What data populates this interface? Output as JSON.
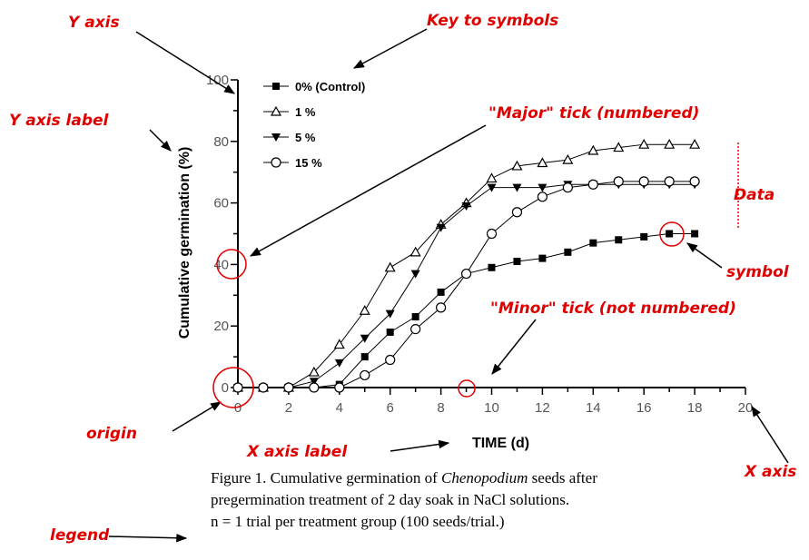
{
  "chart_data": {
    "type": "line",
    "x": [
      0,
      1,
      2,
      3,
      4,
      5,
      6,
      7,
      8,
      9,
      10,
      11,
      12,
      13,
      14,
      15,
      16,
      17,
      18
    ],
    "series": [
      {
        "name": "0% (Control)",
        "color": "#000000",
        "marker": "square",
        "values": [
          0,
          0,
          0,
          0,
          1,
          10,
          18,
          23,
          31,
          37,
          39,
          41,
          42,
          44,
          47,
          48,
          49,
          50,
          50
        ]
      },
      {
        "name": "1 %",
        "color": "#000000",
        "marker": "triangle-up-open",
        "values": [
          0,
          0,
          0,
          5,
          14,
          25,
          39,
          44,
          53,
          60,
          68,
          72,
          73,
          74,
          77,
          78,
          79,
          79,
          79
        ]
      },
      {
        "name": "5 %",
        "color": "#000000",
        "marker": "triangle-down",
        "values": [
          0,
          0,
          0,
          2,
          8,
          16,
          24,
          37,
          52,
          59,
          65,
          65,
          65,
          66,
          66,
          66,
          66,
          66,
          66
        ]
      },
      {
        "name": "15 %",
        "color": "#000000",
        "marker": "circle-open",
        "values": [
          0,
          0,
          0,
          0,
          0,
          4,
          9,
          19,
          26,
          37,
          50,
          57,
          62,
          65,
          66,
          67,
          67,
          67,
          67
        ]
      }
    ],
    "xlabel": "TIME (d)",
    "ylabel": "Cumulative germination (%)",
    "xlim": [
      0,
      20
    ],
    "ylim": [
      0,
      100
    ],
    "xticks": [
      0,
      2,
      4,
      6,
      8,
      10,
      12,
      14,
      16,
      18,
      20
    ],
    "yticks": [
      0,
      20,
      40,
      60,
      80,
      100
    ],
    "xticks_minor": [
      1,
      3,
      5,
      7,
      9,
      11,
      13,
      15,
      17,
      19
    ],
    "yticks_minor": [
      10,
      30,
      50,
      70,
      90
    ],
    "grid": false,
    "legend": "upper left"
  },
  "annotations": {
    "y_axis": "Y axis",
    "key": "Key to symbols",
    "y_axis_label": "Y axis label",
    "major_tick": "\"Major\" tick (numbered)",
    "data": "Data",
    "symbol": "symbol",
    "minor_tick": "\"Minor\" tick (not numbered)",
    "origin": "origin",
    "x_axis_label": "X axis label",
    "x_axis": "X axis",
    "legend": "legend"
  },
  "caption": {
    "line1_a": "Figure 1. Cumulative germination of ",
    "line1_italic": "Chenopodium",
    "line1_b": " seeds after",
    "line2": "pregermination treatment of 2 day soak in NaCl solutions.",
    "line3": "n = 1 trial per treatment group (100 seeds/trial.)"
  }
}
